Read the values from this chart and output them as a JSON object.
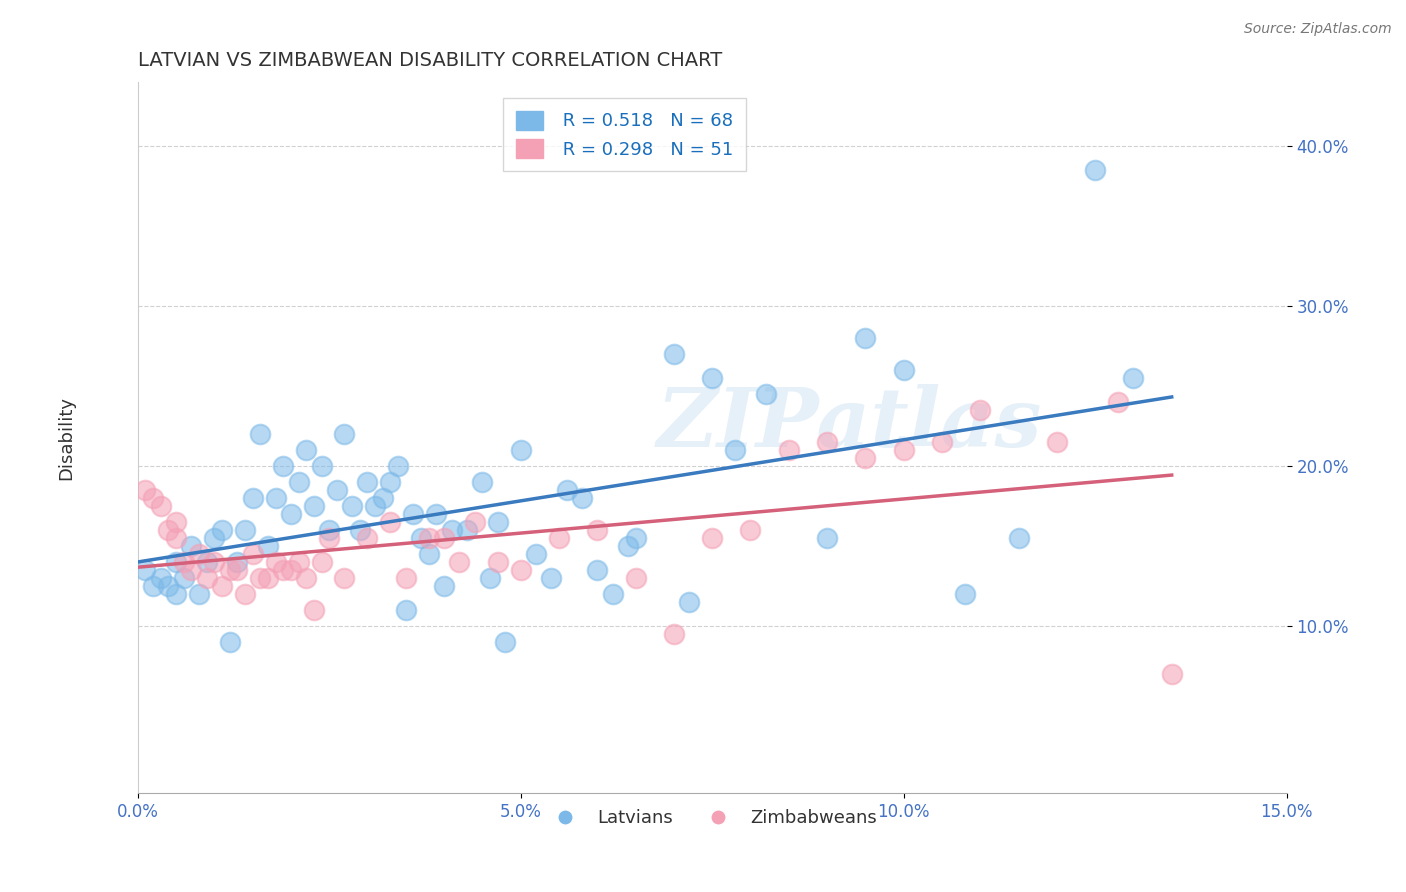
{
  "title": "LATVIAN VS ZIMBABWEAN DISABILITY CORRELATION CHART",
  "source": "Source: ZipAtlas.com",
  "ylabel": "Disability",
  "xlim": [
    0.0,
    0.15
  ],
  "ylim": [
    -0.005,
    0.44
  ],
  "xticks": [
    0.0,
    0.05,
    0.1,
    0.15
  ],
  "xtick_labels": [
    "0.0%",
    "5.0%",
    "10.0%",
    "15.0%"
  ],
  "yticks": [
    0.1,
    0.2,
    0.3,
    0.4
  ],
  "ytick_labels": [
    "10.0%",
    "20.0%",
    "30.0%",
    "40.0%"
  ],
  "latvian_color": "#7cb9e8",
  "zimbabwean_color": "#f4a0b5",
  "latvian_line_color": "#3a7abf",
  "zimbabwean_line_color": "#d4607a",
  "R_latvian": 0.518,
  "N_latvian": 68,
  "R_zimbabwean": 0.298,
  "N_zimbabwean": 51,
  "watermark": "ZIPatlas",
  "grid_color": "#cccccc",
  "background_color": "#ffffff",
  "tick_label_color": "#4472c4",
  "latvian_scatter": [
    [
      0.001,
      0.135
    ],
    [
      0.002,
      0.125
    ],
    [
      0.003,
      0.13
    ],
    [
      0.004,
      0.125
    ],
    [
      0.005,
      0.14
    ],
    [
      0.005,
      0.12
    ],
    [
      0.006,
      0.13
    ],
    [
      0.007,
      0.15
    ],
    [
      0.008,
      0.12
    ],
    [
      0.009,
      0.14
    ],
    [
      0.01,
      0.155
    ],
    [
      0.011,
      0.16
    ],
    [
      0.012,
      0.09
    ],
    [
      0.013,
      0.14
    ],
    [
      0.014,
      0.16
    ],
    [
      0.015,
      0.18
    ],
    [
      0.016,
      0.22
    ],
    [
      0.017,
      0.15
    ],
    [
      0.018,
      0.18
    ],
    [
      0.019,
      0.2
    ],
    [
      0.02,
      0.17
    ],
    [
      0.021,
      0.19
    ],
    [
      0.022,
      0.21
    ],
    [
      0.023,
      0.175
    ],
    [
      0.024,
      0.2
    ],
    [
      0.025,
      0.16
    ],
    [
      0.026,
      0.185
    ],
    [
      0.027,
      0.22
    ],
    [
      0.028,
      0.175
    ],
    [
      0.029,
      0.16
    ],
    [
      0.03,
      0.19
    ],
    [
      0.031,
      0.175
    ],
    [
      0.032,
      0.18
    ],
    [
      0.033,
      0.19
    ],
    [
      0.034,
      0.2
    ],
    [
      0.035,
      0.11
    ],
    [
      0.036,
      0.17
    ],
    [
      0.037,
      0.155
    ],
    [
      0.038,
      0.145
    ],
    [
      0.039,
      0.17
    ],
    [
      0.04,
      0.125
    ],
    [
      0.041,
      0.16
    ],
    [
      0.043,
      0.16
    ],
    [
      0.045,
      0.19
    ],
    [
      0.046,
      0.13
    ],
    [
      0.047,
      0.165
    ],
    [
      0.048,
      0.09
    ],
    [
      0.05,
      0.21
    ],
    [
      0.052,
      0.145
    ],
    [
      0.054,
      0.13
    ],
    [
      0.056,
      0.185
    ],
    [
      0.058,
      0.18
    ],
    [
      0.06,
      0.135
    ],
    [
      0.062,
      0.12
    ],
    [
      0.064,
      0.15
    ],
    [
      0.065,
      0.155
    ],
    [
      0.07,
      0.27
    ],
    [
      0.072,
      0.115
    ],
    [
      0.075,
      0.255
    ],
    [
      0.078,
      0.21
    ],
    [
      0.082,
      0.245
    ],
    [
      0.09,
      0.155
    ],
    [
      0.095,
      0.28
    ],
    [
      0.1,
      0.26
    ],
    [
      0.108,
      0.12
    ],
    [
      0.115,
      0.155
    ],
    [
      0.125,
      0.385
    ],
    [
      0.13,
      0.255
    ]
  ],
  "zimbabwean_scatter": [
    [
      0.001,
      0.185
    ],
    [
      0.002,
      0.18
    ],
    [
      0.003,
      0.175
    ],
    [
      0.004,
      0.16
    ],
    [
      0.005,
      0.155
    ],
    [
      0.005,
      0.165
    ],
    [
      0.006,
      0.14
    ],
    [
      0.007,
      0.135
    ],
    [
      0.008,
      0.145
    ],
    [
      0.009,
      0.13
    ],
    [
      0.01,
      0.14
    ],
    [
      0.011,
      0.125
    ],
    [
      0.012,
      0.135
    ],
    [
      0.013,
      0.135
    ],
    [
      0.014,
      0.12
    ],
    [
      0.015,
      0.145
    ],
    [
      0.016,
      0.13
    ],
    [
      0.017,
      0.13
    ],
    [
      0.018,
      0.14
    ],
    [
      0.019,
      0.135
    ],
    [
      0.02,
      0.135
    ],
    [
      0.021,
      0.14
    ],
    [
      0.022,
      0.13
    ],
    [
      0.023,
      0.11
    ],
    [
      0.024,
      0.14
    ],
    [
      0.025,
      0.155
    ],
    [
      0.027,
      0.13
    ],
    [
      0.03,
      0.155
    ],
    [
      0.033,
      0.165
    ],
    [
      0.035,
      0.13
    ],
    [
      0.038,
      0.155
    ],
    [
      0.04,
      0.155
    ],
    [
      0.042,
      0.14
    ],
    [
      0.044,
      0.165
    ],
    [
      0.047,
      0.14
    ],
    [
      0.05,
      0.135
    ],
    [
      0.055,
      0.155
    ],
    [
      0.06,
      0.16
    ],
    [
      0.065,
      0.13
    ],
    [
      0.07,
      0.095
    ],
    [
      0.075,
      0.155
    ],
    [
      0.08,
      0.16
    ],
    [
      0.085,
      0.21
    ],
    [
      0.09,
      0.215
    ],
    [
      0.095,
      0.205
    ],
    [
      0.1,
      0.21
    ],
    [
      0.105,
      0.215
    ],
    [
      0.11,
      0.235
    ],
    [
      0.12,
      0.215
    ],
    [
      0.128,
      0.24
    ],
    [
      0.135,
      0.07
    ]
  ]
}
